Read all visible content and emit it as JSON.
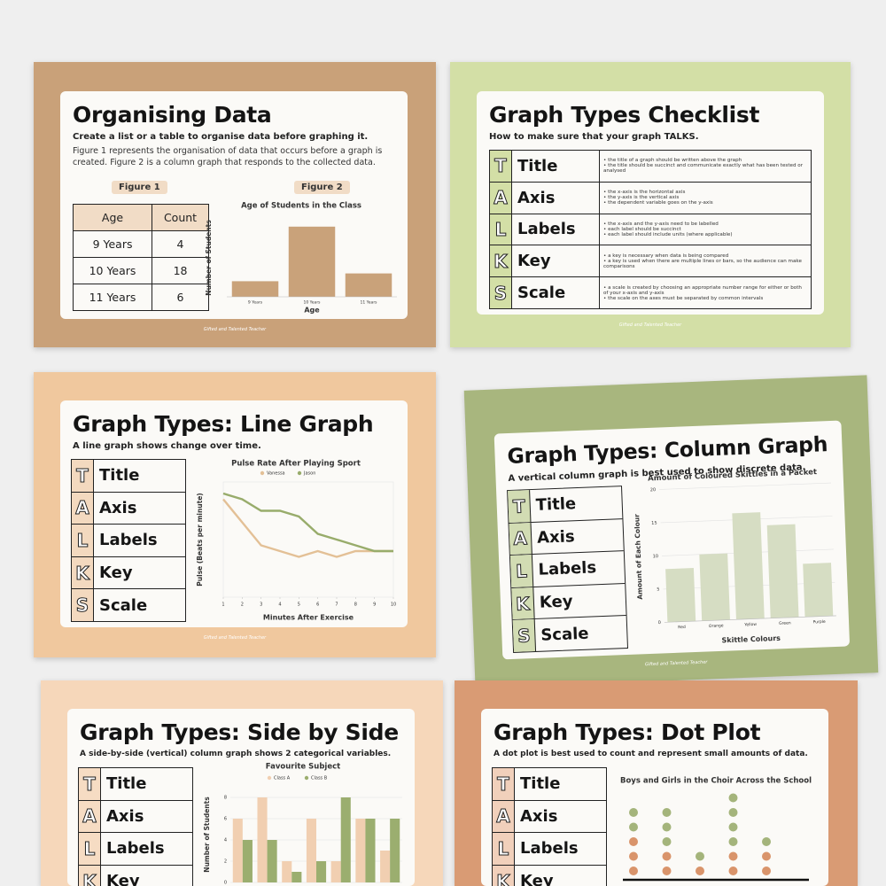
{
  "talks": [
    {
      "letter": "T",
      "word": "Title"
    },
    {
      "letter": "A",
      "word": "Axis"
    },
    {
      "letter": "L",
      "word": "Labels"
    },
    {
      "letter": "K",
      "word": "Key"
    },
    {
      "letter": "S",
      "word": "Scale"
    }
  ],
  "footer": "Gifted and Talented Teacher",
  "posters": [
    {
      "title": "Organising Data",
      "subtitle": "Create a list or a table to organise data before graphing it.",
      "body": "Figure 1 represents the organisation of data that occurs before a graph is created. Figure 2 is a column graph that responds to the collected data.",
      "figure1": "Figure 1",
      "figure2": "Figure 2",
      "table": {
        "header": [
          "Age",
          "Count"
        ],
        "rows": [
          [
            "9 Years",
            4
          ],
          [
            "10 Years",
            18
          ],
          [
            "11 Years",
            6
          ]
        ]
      },
      "chart": {
        "type": "bar",
        "title": "Age of Students in the Class",
        "y_label": "Number of Students",
        "x_label": "Age",
        "categories": [
          "9 Years",
          "10 Years",
          "11 Years"
        ],
        "values": [
          4,
          18,
          6
        ],
        "color": "#c9a27a",
        "ylim": [
          0,
          20
        ],
        "grid": false
      }
    },
    {
      "title": "Graph Types Checklist",
      "subtitle": "How to make sure that your graph TALKS.",
      "checklist": [
        [
          "the title of a graph should be written above the graph",
          "the title should be succinct and communicate exactly what has been tested or analysed"
        ],
        [
          "the x-axis is the horizontal axis",
          "the y-axis is the vertical axis",
          "the dependent variable goes on the y-axis"
        ],
        [
          "the x-axis and the y-axis need to be labelled",
          "each label should be succinct",
          "each label should include units (where applicable)"
        ],
        [
          "a key is necessary when data is being compared",
          "a key is used when there are multiple lines or bars, so the audience can make comparisons"
        ],
        [
          "a scale is created by choosing an appropriate number range for either or both of your x-axis and y-axis",
          "the scale on the axes must be separated by common intervals"
        ]
      ]
    },
    {
      "title": "Graph Types: Line Graph",
      "subtitle": "A line graph shows change over time.",
      "chart": {
        "type": "line",
        "title": "Pulse Rate After Playing Sport",
        "y_label": "Pulse (Beats per minute)",
        "x_label": "Minutes After Exercise",
        "x": [
          1,
          2,
          3,
          4,
          5,
          6,
          7,
          8,
          9,
          10
        ],
        "xlim": [
          1,
          10
        ],
        "xticks": [
          1,
          2,
          3,
          4,
          5,
          6,
          7,
          8,
          9,
          10
        ],
        "ylim": [
          0,
          200
        ],
        "series": [
          {
            "name": "Vanessa",
            "color": "#e3c096",
            "values": [
              170,
              130,
              90,
              80,
              70,
              80,
              70,
              80,
              80,
              80
            ]
          },
          {
            "name": "Jason",
            "color": "#98ac6b",
            "values": [
              180,
              170,
              150,
              150,
              140,
              110,
              100,
              90,
              80,
              80
            ]
          }
        ]
      }
    },
    {
      "title": "Graph Types: Column Graph",
      "subtitle": "A vertical column graph is best used to show discrete data.",
      "chart": {
        "type": "bar",
        "title": "Amount of Coloured Skittles in a Packet",
        "y_label": "Amount of Each Colour",
        "x_label": "Skittle Colours",
        "categories": [
          "Red",
          "Orange",
          "Yellow",
          "Green",
          "Purple"
        ],
        "values": [
          8,
          10,
          16,
          14,
          8
        ],
        "color": "#d6ddc3",
        "ylim": [
          0,
          20
        ],
        "yticks": [
          0,
          5,
          10,
          15,
          20
        ],
        "grid": true
      }
    },
    {
      "title": "Graph Types: Side by Side",
      "subtitle": "A side-by-side (vertical) column graph shows 2 categorical variables.",
      "chart": {
        "type": "grouped",
        "title": "Favourite Subject",
        "y_label": "Number of Students",
        "ylim": [
          0,
          9
        ],
        "yticks": [
          0,
          2,
          4,
          6,
          8
        ],
        "grid": true,
        "series": [
          {
            "name": "Class A",
            "color": "#f1cfb1",
            "values": [
              6,
              8,
              2,
              6,
              2,
              6,
              3
            ]
          },
          {
            "name": "Class B",
            "color": "#9bae6f",
            "values": [
              4,
              4,
              1,
              2,
              8,
              6,
              6
            ]
          }
        ]
      }
    },
    {
      "title": "Graph Types: Dot Plot",
      "subtitle": "A dot plot is best used to count and represent small amounts of data.",
      "chart": {
        "type": "dot",
        "title": "Boys and Girls in the Choir Across the School",
        "series": [
          {
            "color": "#d9946b",
            "values": [
              3,
              2,
              1,
              2,
              2
            ]
          },
          {
            "color": "#a4b47b",
            "values": [
              2,
              3,
              1,
              4,
              1
            ]
          }
        ]
      }
    }
  ]
}
